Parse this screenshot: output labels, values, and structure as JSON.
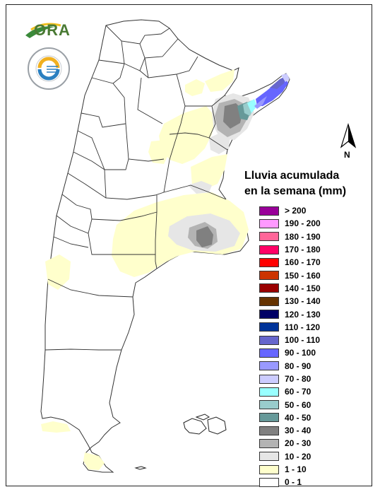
{
  "map_title": {
    "line1": "Lluvia acumulada",
    "line2": "en la semana (mm)"
  },
  "logos": {
    "ora_text": "ORA",
    "seal_text": "SERVICIO METEOROLOGICO NACIONAL · ARGENTINA"
  },
  "north_arrow": {
    "label": "N"
  },
  "legend": [
    {
      "label": "> 200",
      "color": "#990099"
    },
    {
      "label": "190 - 200",
      "color": "#ff99ff"
    },
    {
      "label": "180 - 190",
      "color": "#ff6699"
    },
    {
      "label": "170 - 180",
      "color": "#ff0066"
    },
    {
      "label": "160 - 170",
      "color": "#ff0000"
    },
    {
      "label": "150 - 160",
      "color": "#cc3300"
    },
    {
      "label": "140 - 150",
      "color": "#990000"
    },
    {
      "label": "130 - 140",
      "color": "#663300"
    },
    {
      "label": "120 - 130",
      "color": "#000066"
    },
    {
      "label": "110 - 120",
      "color": "#003399"
    },
    {
      "label": "100 - 110",
      "color": "#6666cc"
    },
    {
      "label": "90 - 100",
      "color": "#6666ff"
    },
    {
      "label": "80 - 90",
      "color": "#9999ff"
    },
    {
      "label": "70 - 80",
      "color": "#ccccff"
    },
    {
      "label": "60 - 70",
      "color": "#99ffff"
    },
    {
      "label": "50 - 60",
      "color": "#99cccc"
    },
    {
      "label": "40 - 50",
      "color": "#669999"
    },
    {
      "label": "30 - 40",
      "color": "#808080"
    },
    {
      "label": "20 - 30",
      "color": "#b3b3b3"
    },
    {
      "label": "10 - 20",
      "color": "#e6e6e6"
    },
    {
      "label": "1 - 10",
      "color": "#ffffcc"
    },
    {
      "label": "0 - 1",
      "color": "#ffffff"
    }
  ]
}
